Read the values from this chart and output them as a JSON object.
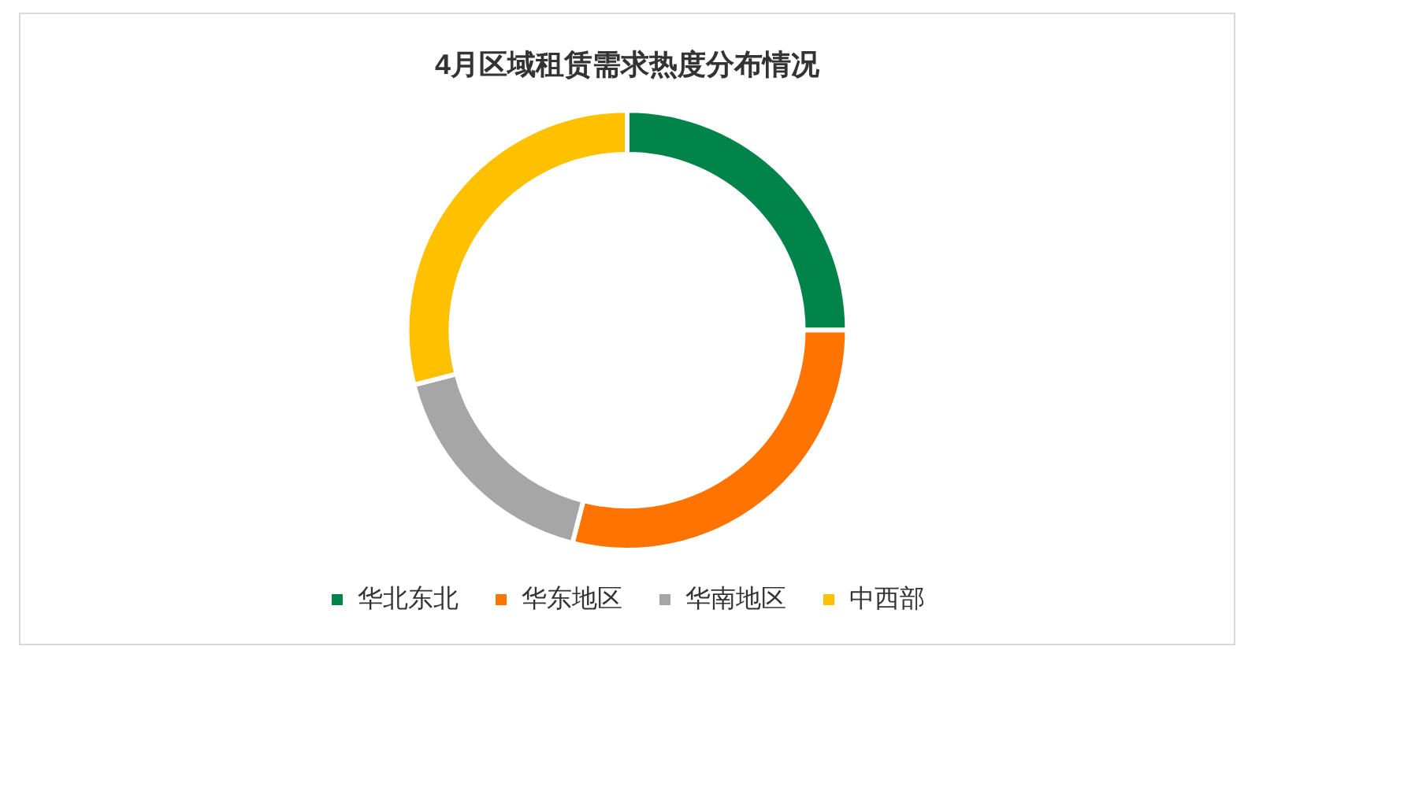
{
  "chart_data": {
    "type": "donut",
    "title": "4月区域租赁需求热度分布情况",
    "categories": [
      "华北东北",
      "华东地区",
      "华南地区",
      "中西部"
    ],
    "values": [
      25,
      29,
      17,
      29
    ],
    "colors": [
      "#00844a",
      "#ff7300",
      "#a6a6a6",
      "#ffc000"
    ],
    "legend": "bottom"
  }
}
